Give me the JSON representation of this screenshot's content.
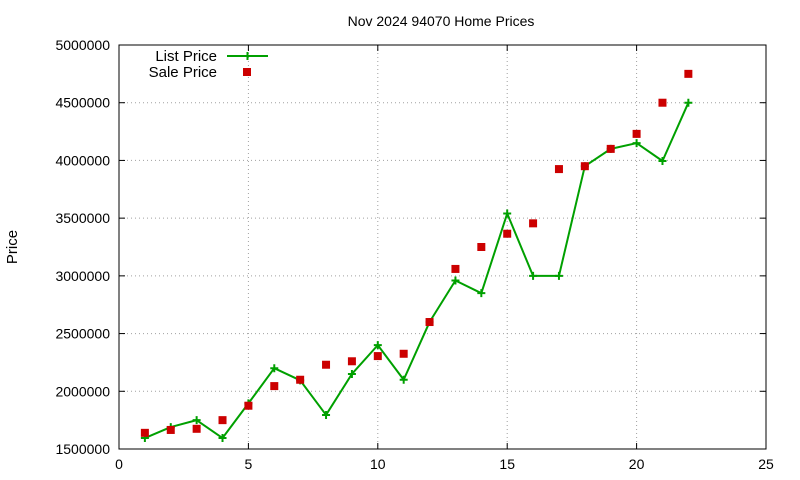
{
  "chart_data": {
    "type": "line",
    "title": "Nov 2024 94070 Home Prices",
    "xlabel": "",
    "ylabel": "Price",
    "xlim": [
      0,
      25
    ],
    "ylim": [
      1500000,
      5000000
    ],
    "x_ticks": [
      0,
      5,
      10,
      15,
      20,
      25
    ],
    "y_ticks": [
      1500000,
      2000000,
      2500000,
      3000000,
      3500000,
      4000000,
      4500000,
      5000000
    ],
    "x_tick_labels": [
      "0",
      "5",
      "10",
      "15",
      "20",
      "25"
    ],
    "y_tick_labels": [
      "1500000",
      "2000000",
      "2500000",
      "3000000",
      "3500000",
      "4000000",
      "4500000",
      "5000000"
    ],
    "grid": true,
    "legend_position": "top-left",
    "series": [
      {
        "name": "List Price",
        "style": "line-points",
        "marker": "plus",
        "color": "#00a000",
        "x": [
          1,
          2,
          3,
          4,
          5,
          6,
          7,
          8,
          9,
          10,
          11,
          12,
          13,
          14,
          15,
          16,
          17,
          18,
          19,
          20,
          21,
          22
        ],
        "y": [
          1595000,
          1690000,
          1750000,
          1595000,
          1895000,
          2200000,
          2095000,
          1795000,
          2150000,
          2400000,
          2100000,
          2600000,
          2960000,
          2850000,
          3540000,
          3000000,
          3000000,
          3950000,
          4100000,
          4150000,
          3995000,
          4500000
        ]
      },
      {
        "name": "Sale Price",
        "style": "points",
        "marker": "square",
        "color": "#cc0000",
        "x": [
          1,
          2,
          3,
          4,
          5,
          6,
          7,
          8,
          9,
          10,
          11,
          12,
          13,
          14,
          15,
          16,
          17,
          18,
          19,
          20,
          21,
          22
        ],
        "y": [
          1640000,
          1665000,
          1675000,
          1750000,
          1875000,
          2045000,
          2100000,
          2230000,
          2260000,
          2305000,
          2325000,
          2600000,
          3060000,
          3250000,
          3365000,
          3455000,
          3925000,
          3950000,
          4100000,
          4230000,
          4500000,
          4750000
        ]
      }
    ]
  }
}
